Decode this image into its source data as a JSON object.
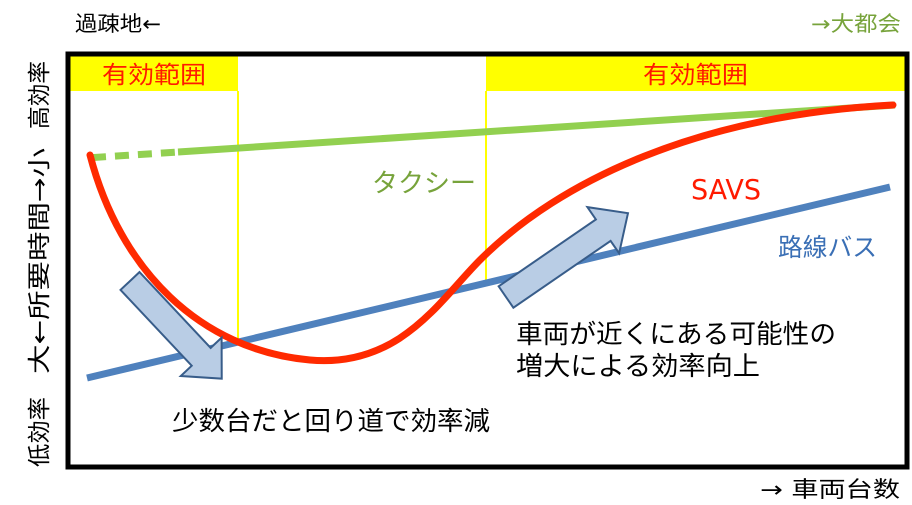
{
  "top_labels": {
    "left": "過疎地←",
    "right": "→大都会"
  },
  "y_axis": {
    "top": "高効率",
    "middle": "大←所要時間→小",
    "bottom": "低効率"
  },
  "x_axis": {
    "label": "→ 車両台数"
  },
  "effective_range": {
    "left_label": "有効範囲",
    "right_label": "有効範囲"
  },
  "series_labels": {
    "taxi": "タクシー",
    "savs": "SAVS",
    "route_bus": "路線バス"
  },
  "annotations": {
    "few_vehicles_detour": "少数台だと回り道で効率減",
    "efficiency_gain_line1": "車両が近くにある可能性の",
    "efficiency_gain_line2": "増大による効率向上"
  },
  "colors": {
    "taxi": "#92d050",
    "savs": "#ff2a00",
    "route_bus": "#4f81bd",
    "effective_range": "#ffff00",
    "arrow_fill": "#b9cde5"
  }
}
